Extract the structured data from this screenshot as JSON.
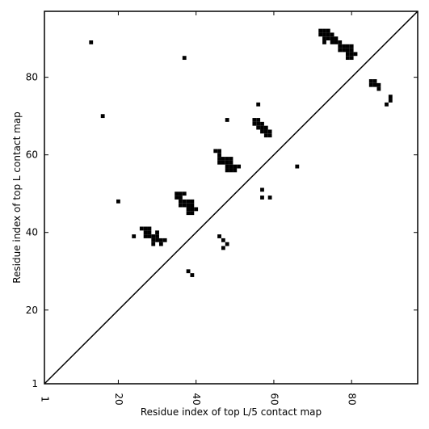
{
  "chart_data": {
    "type": "heatmap",
    "xlabel": "Residue index of top L/5 contact map",
    "ylabel": "Residue index of top L contact map",
    "xlim": [
      1,
      97
    ],
    "ylim": [
      1,
      97
    ],
    "x_ticks": [
      {
        "value": 1,
        "label": "1"
      },
      {
        "value": 20,
        "label": "20"
      },
      {
        "value": 40,
        "label": "40"
      },
      {
        "value": 60,
        "label": "60"
      },
      {
        "value": 80,
        "label": "80"
      }
    ],
    "y_ticks": [
      {
        "value": 1,
        "label": "1"
      },
      {
        "value": 20,
        "label": "20"
      },
      {
        "value": 40,
        "label": "40"
      },
      {
        "value": 60,
        "label": "60"
      },
      {
        "value": 80,
        "label": "80"
      }
    ],
    "diagonal": true,
    "cell_color": "#000000",
    "upper_cells": [
      [
        13,
        89
      ],
      [
        37,
        85
      ],
      [
        16,
        70
      ],
      [
        20,
        48
      ],
      [
        24,
        39
      ],
      [
        72,
        92
      ],
      [
        73,
        92
      ],
      [
        74,
        92
      ],
      [
        72,
        91
      ],
      [
        73,
        91
      ],
      [
        74,
        91
      ],
      [
        75,
        91
      ],
      [
        73,
        90
      ],
      [
        74,
        90
      ],
      [
        75,
        90
      ],
      [
        76,
        90
      ],
      [
        73,
        89
      ],
      [
        75,
        89
      ],
      [
        76,
        89
      ],
      [
        77,
        89
      ],
      [
        77,
        88
      ],
      [
        78,
        88
      ],
      [
        79,
        88
      ],
      [
        80,
        88
      ],
      [
        77,
        87
      ],
      [
        78,
        87
      ],
      [
        79,
        87
      ],
      [
        80,
        87
      ],
      [
        79,
        86
      ],
      [
        80,
        86
      ],
      [
        81,
        86
      ],
      [
        79,
        85
      ],
      [
        80,
        85
      ]
    ],
    "lower_cells": [
      [
        48,
        69
      ],
      [
        56,
        73
      ],
      [
        66,
        57
      ],
      [
        57,
        51
      ],
      [
        57,
        49
      ],
      [
        59,
        49
      ],
      [
        55,
        69
      ],
      [
        56,
        69
      ],
      [
        55,
        68
      ],
      [
        56,
        68
      ],
      [
        57,
        68
      ],
      [
        56,
        67
      ],
      [
        57,
        67
      ],
      [
        58,
        67
      ],
      [
        57,
        66
      ],
      [
        58,
        66
      ],
      [
        59,
        66
      ],
      [
        58,
        65
      ],
      [
        59,
        65
      ],
      [
        45,
        61
      ],
      [
        46,
        61
      ],
      [
        46,
        60
      ],
      [
        46,
        59
      ],
      [
        47,
        59
      ],
      [
        48,
        59
      ],
      [
        49,
        59
      ],
      [
        46,
        58
      ],
      [
        47,
        58
      ],
      [
        48,
        58
      ],
      [
        49,
        58
      ],
      [
        48,
        57
      ],
      [
        49,
        57
      ],
      [
        50,
        57
      ],
      [
        51,
        57
      ],
      [
        48,
        56
      ],
      [
        49,
        56
      ],
      [
        50,
        56
      ],
      [
        35,
        50
      ],
      [
        36,
        50
      ],
      [
        37,
        50
      ],
      [
        35,
        49
      ],
      [
        36,
        49
      ],
      [
        36,
        48
      ],
      [
        37,
        48
      ],
      [
        38,
        48
      ],
      [
        39,
        48
      ],
      [
        36,
        47
      ],
      [
        37,
        47
      ],
      [
        38,
        47
      ],
      [
        39,
        47
      ],
      [
        38,
        46
      ],
      [
        39,
        46
      ],
      [
        40,
        46
      ],
      [
        38,
        45
      ],
      [
        39,
        45
      ],
      [
        26,
        41
      ],
      [
        27,
        41
      ],
      [
        28,
        41
      ],
      [
        27,
        40
      ],
      [
        28,
        40
      ],
      [
        30,
        40
      ],
      [
        27,
        39
      ],
      [
        28,
        39
      ],
      [
        29,
        39
      ],
      [
        30,
        39
      ],
      [
        29,
        38
      ],
      [
        30,
        38
      ],
      [
        31,
        38
      ],
      [
        32,
        38
      ],
      [
        29,
        37
      ],
      [
        31,
        37
      ],
      [
        46,
        39
      ],
      [
        47,
        38
      ],
      [
        48,
        37
      ],
      [
        47,
        36
      ],
      [
        38,
        30
      ],
      [
        39,
        29
      ],
      [
        85,
        79
      ],
      [
        86,
        79
      ],
      [
        85,
        78
      ],
      [
        86,
        78
      ],
      [
        87,
        78
      ],
      [
        87,
        77
      ],
      [
        90,
        75
      ],
      [
        90,
        74
      ],
      [
        89,
        73
      ]
    ]
  }
}
